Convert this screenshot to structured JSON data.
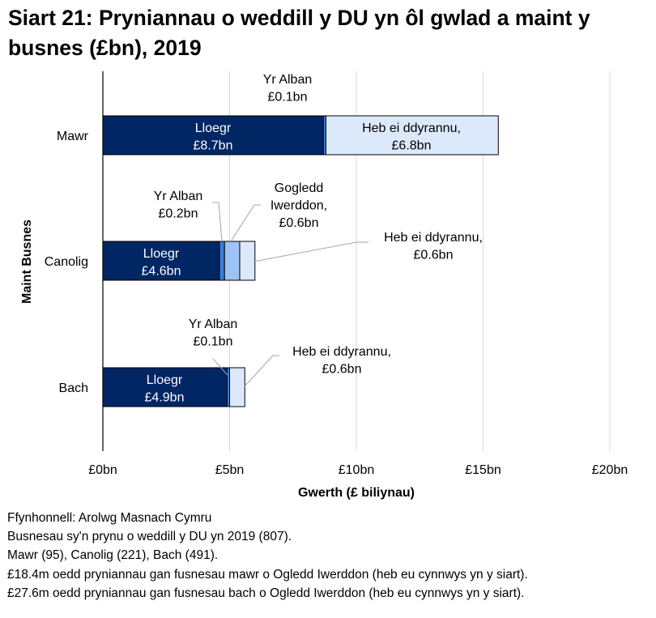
{
  "chart_data": {
    "type": "bar",
    "orientation": "horizontal",
    "stacked": true,
    "title": "Siart 21: Pryniannau o weddill y DU yn ôl gwlad a maint y busnes (£bn), 2019",
    "xlabel": "Gwerth (£ biliynau)",
    "ylabel": "Maint Busnes",
    "categories": [
      "Mawr",
      "Canolig",
      "Bach"
    ],
    "xlim": [
      0,
      20
    ],
    "xticks": [
      0,
      5,
      10,
      15,
      20
    ],
    "xtick_labels": [
      "£0bn",
      "£5bn",
      "£10bn",
      "£15bn",
      "£20bn"
    ],
    "grid": "vertical",
    "legend": "none",
    "series": [
      {
        "key": "lloegr",
        "color": "#002664",
        "values": [
          8.7,
          4.6,
          4.9
        ]
      },
      {
        "key": "yr_alban",
        "color": "#3b7dd8",
        "values": [
          0.1,
          0.2,
          0.1
        ]
      },
      {
        "key": "gogledd_iwerddon",
        "color": "#9dc3f5",
        "values": [
          0,
          0.6,
          0
        ]
      },
      {
        "key": "heb_ei_ddyrannu",
        "color": "#dce9fb",
        "values": [
          6.8,
          0.6,
          0.6
        ]
      }
    ],
    "labels": {
      "mawr_lloegr": [
        "Lloegr",
        "£8.7bn"
      ],
      "mawr_alban": [
        "Yr Alban",
        "£0.1bn"
      ],
      "mawr_heb": [
        "Heb ei ddyrannu,",
        "£6.8bn"
      ],
      "canolig_lloegr": [
        "Lloegr",
        "£4.6bn"
      ],
      "canolig_alban": [
        "Yr Alban",
        "£0.2bn"
      ],
      "canolig_gi": [
        "Gogledd",
        "Iwerddon,",
        "£0.6bn"
      ],
      "canolig_heb": [
        "Heb ei ddyrannu,",
        "£0.6bn"
      ],
      "bach_lloegr": [
        "Lloegr",
        "£4.9bn"
      ],
      "bach_alban": [
        "Yr Alban",
        "£0.1bn"
      ],
      "bach_heb": [
        "Heb ei ddyrannu,",
        "£0.6bn"
      ]
    }
  },
  "notes": [
    "Ffynhonnell: Arolwg Masnach Cymru",
    "Busnesau sy'n prynu o weddill y DU yn 2019 (807).",
    "Mawr (95), Canolig (221), Bach (491).",
    "£18.4m oedd pryniannau gan fusnesau mawr o Ogledd Iwerddon (heb eu cynnwys yn y siart).",
    "£27.6m oedd pryniannau gan fusnesau bach o Ogledd Iwerddon (heb eu cynnwys yn y siart)."
  ]
}
